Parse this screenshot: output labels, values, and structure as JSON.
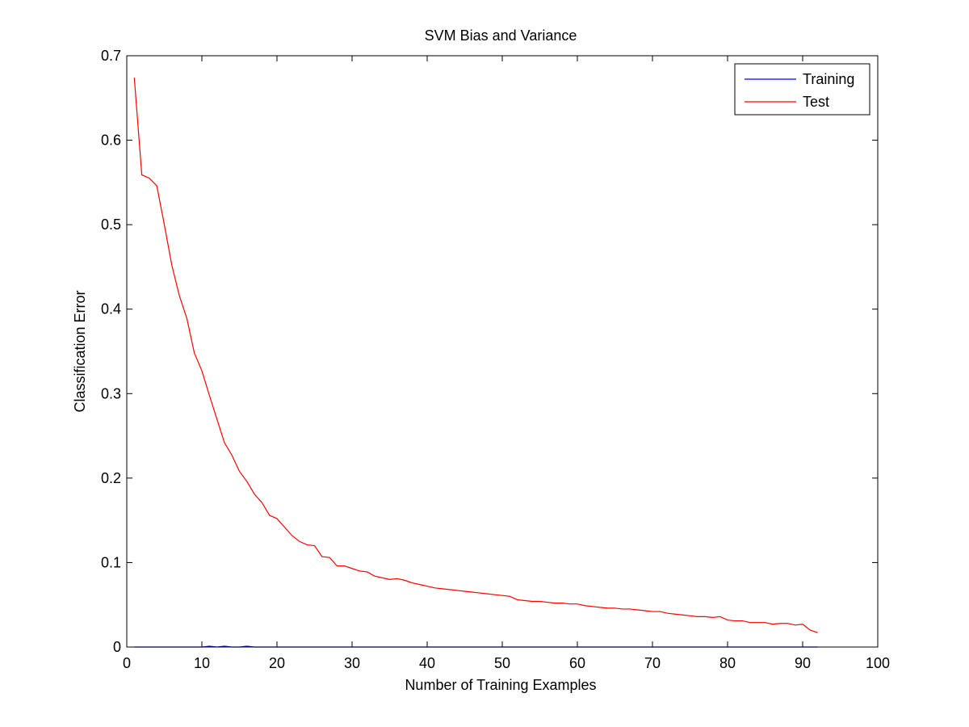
{
  "chart_data": {
    "type": "line",
    "title": "SVM Bias and Variance",
    "xlabel": "Number of Training Examples",
    "ylabel": "Classification Error",
    "xlim": [
      0,
      100
    ],
    "ylim": [
      0,
      0.7
    ],
    "xticks": [
      0,
      10,
      20,
      30,
      40,
      50,
      60,
      70,
      80,
      90,
      100
    ],
    "yticks": [
      0,
      0.1,
      0.2,
      0.3,
      0.4,
      0.5,
      0.6,
      0.7
    ],
    "xtick_labels": [
      "0",
      "10",
      "20",
      "30",
      "40",
      "50",
      "60",
      "70",
      "80",
      "90",
      "100"
    ],
    "ytick_labels": [
      "0",
      "0.1",
      "0.2",
      "0.3",
      "0.4",
      "0.5",
      "0.6",
      "0.7"
    ],
    "grid": false,
    "legend_position": "top-right",
    "series": [
      {
        "name": "Training",
        "color": "#0000ff",
        "x": [
          1,
          2,
          3,
          4,
          5,
          6,
          7,
          8,
          9,
          10,
          11,
          12,
          13,
          14,
          15,
          16,
          17,
          18,
          19,
          20,
          21,
          22,
          23,
          24,
          25,
          26,
          27,
          28,
          29,
          30,
          31,
          32,
          33,
          34,
          35,
          36,
          37,
          38,
          39,
          40,
          41,
          42,
          43,
          44,
          45,
          46,
          47,
          48,
          49,
          50,
          51,
          52,
          53,
          54,
          55,
          56,
          57,
          58,
          59,
          60,
          61,
          62,
          63,
          64,
          65,
          66,
          67,
          68,
          69,
          70,
          71,
          72,
          73,
          74,
          75,
          76,
          77,
          78,
          79,
          80,
          81,
          82,
          83,
          84,
          85,
          86,
          87,
          88,
          89,
          90,
          91,
          92
        ],
        "y": [
          0,
          0,
          0,
          0,
          0,
          0,
          0,
          0,
          0,
          0,
          0.001,
          0,
          0.001,
          0,
          0,
          0.001,
          0,
          0,
          0,
          0,
          0,
          0,
          0,
          0,
          0,
          0,
          0,
          0,
          0,
          0,
          0,
          0,
          0,
          0,
          0,
          0,
          0,
          0,
          0,
          0,
          0,
          0,
          0,
          0,
          0,
          0,
          0,
          0,
          0,
          0,
          0,
          0,
          0,
          0,
          0,
          0,
          0,
          0,
          0,
          0,
          0,
          0,
          0,
          0,
          0,
          0,
          0,
          0,
          0,
          0,
          0,
          0,
          0,
          0,
          0,
          0,
          0,
          0,
          0,
          0,
          0,
          0,
          0,
          0,
          0,
          0,
          0,
          0,
          0,
          0,
          0,
          0
        ]
      },
      {
        "name": "Test",
        "color": "#ff0000",
        "x": [
          1,
          2,
          3,
          4,
          5,
          6,
          7,
          8,
          9,
          10,
          11,
          12,
          13,
          14,
          15,
          16,
          17,
          18,
          19,
          20,
          21,
          22,
          23,
          24,
          25,
          26,
          27,
          28,
          29,
          30,
          31,
          32,
          33,
          34,
          35,
          36,
          37,
          38,
          39,
          40,
          41,
          42,
          43,
          44,
          45,
          46,
          47,
          48,
          49,
          50,
          51,
          52,
          53,
          54,
          55,
          56,
          57,
          58,
          59,
          60,
          61,
          62,
          63,
          64,
          65,
          66,
          67,
          68,
          69,
          70,
          71,
          72,
          73,
          74,
          75,
          76,
          77,
          78,
          79,
          80,
          81,
          82,
          83,
          84,
          85,
          86,
          87,
          88,
          89,
          90,
          91,
          92
        ],
        "y": [
          0.674,
          0.559,
          0.555,
          0.546,
          0.5,
          0.452,
          0.416,
          0.389,
          0.348,
          0.327,
          0.298,
          0.27,
          0.242,
          0.227,
          0.208,
          0.196,
          0.181,
          0.171,
          0.156,
          0.152,
          0.142,
          0.132,
          0.125,
          0.121,
          0.12,
          0.107,
          0.106,
          0.096,
          0.096,
          0.093,
          0.09,
          0.089,
          0.084,
          0.082,
          0.08,
          0.081,
          0.079,
          0.076,
          0.074,
          0.072,
          0.07,
          0.069,
          0.068,
          0.067,
          0.066,
          0.065,
          0.064,
          0.063,
          0.062,
          0.061,
          0.06,
          0.056,
          0.055,
          0.054,
          0.054,
          0.053,
          0.052,
          0.052,
          0.051,
          0.051,
          0.049,
          0.048,
          0.047,
          0.046,
          0.046,
          0.045,
          0.045,
          0.044,
          0.043,
          0.042,
          0.042,
          0.04,
          0.039,
          0.038,
          0.037,
          0.036,
          0.036,
          0.035,
          0.036,
          0.032,
          0.031,
          0.031,
          0.029,
          0.029,
          0.029,
          0.027,
          0.028,
          0.028,
          0.026,
          0.027,
          0.02,
          0.017
        ]
      }
    ]
  }
}
